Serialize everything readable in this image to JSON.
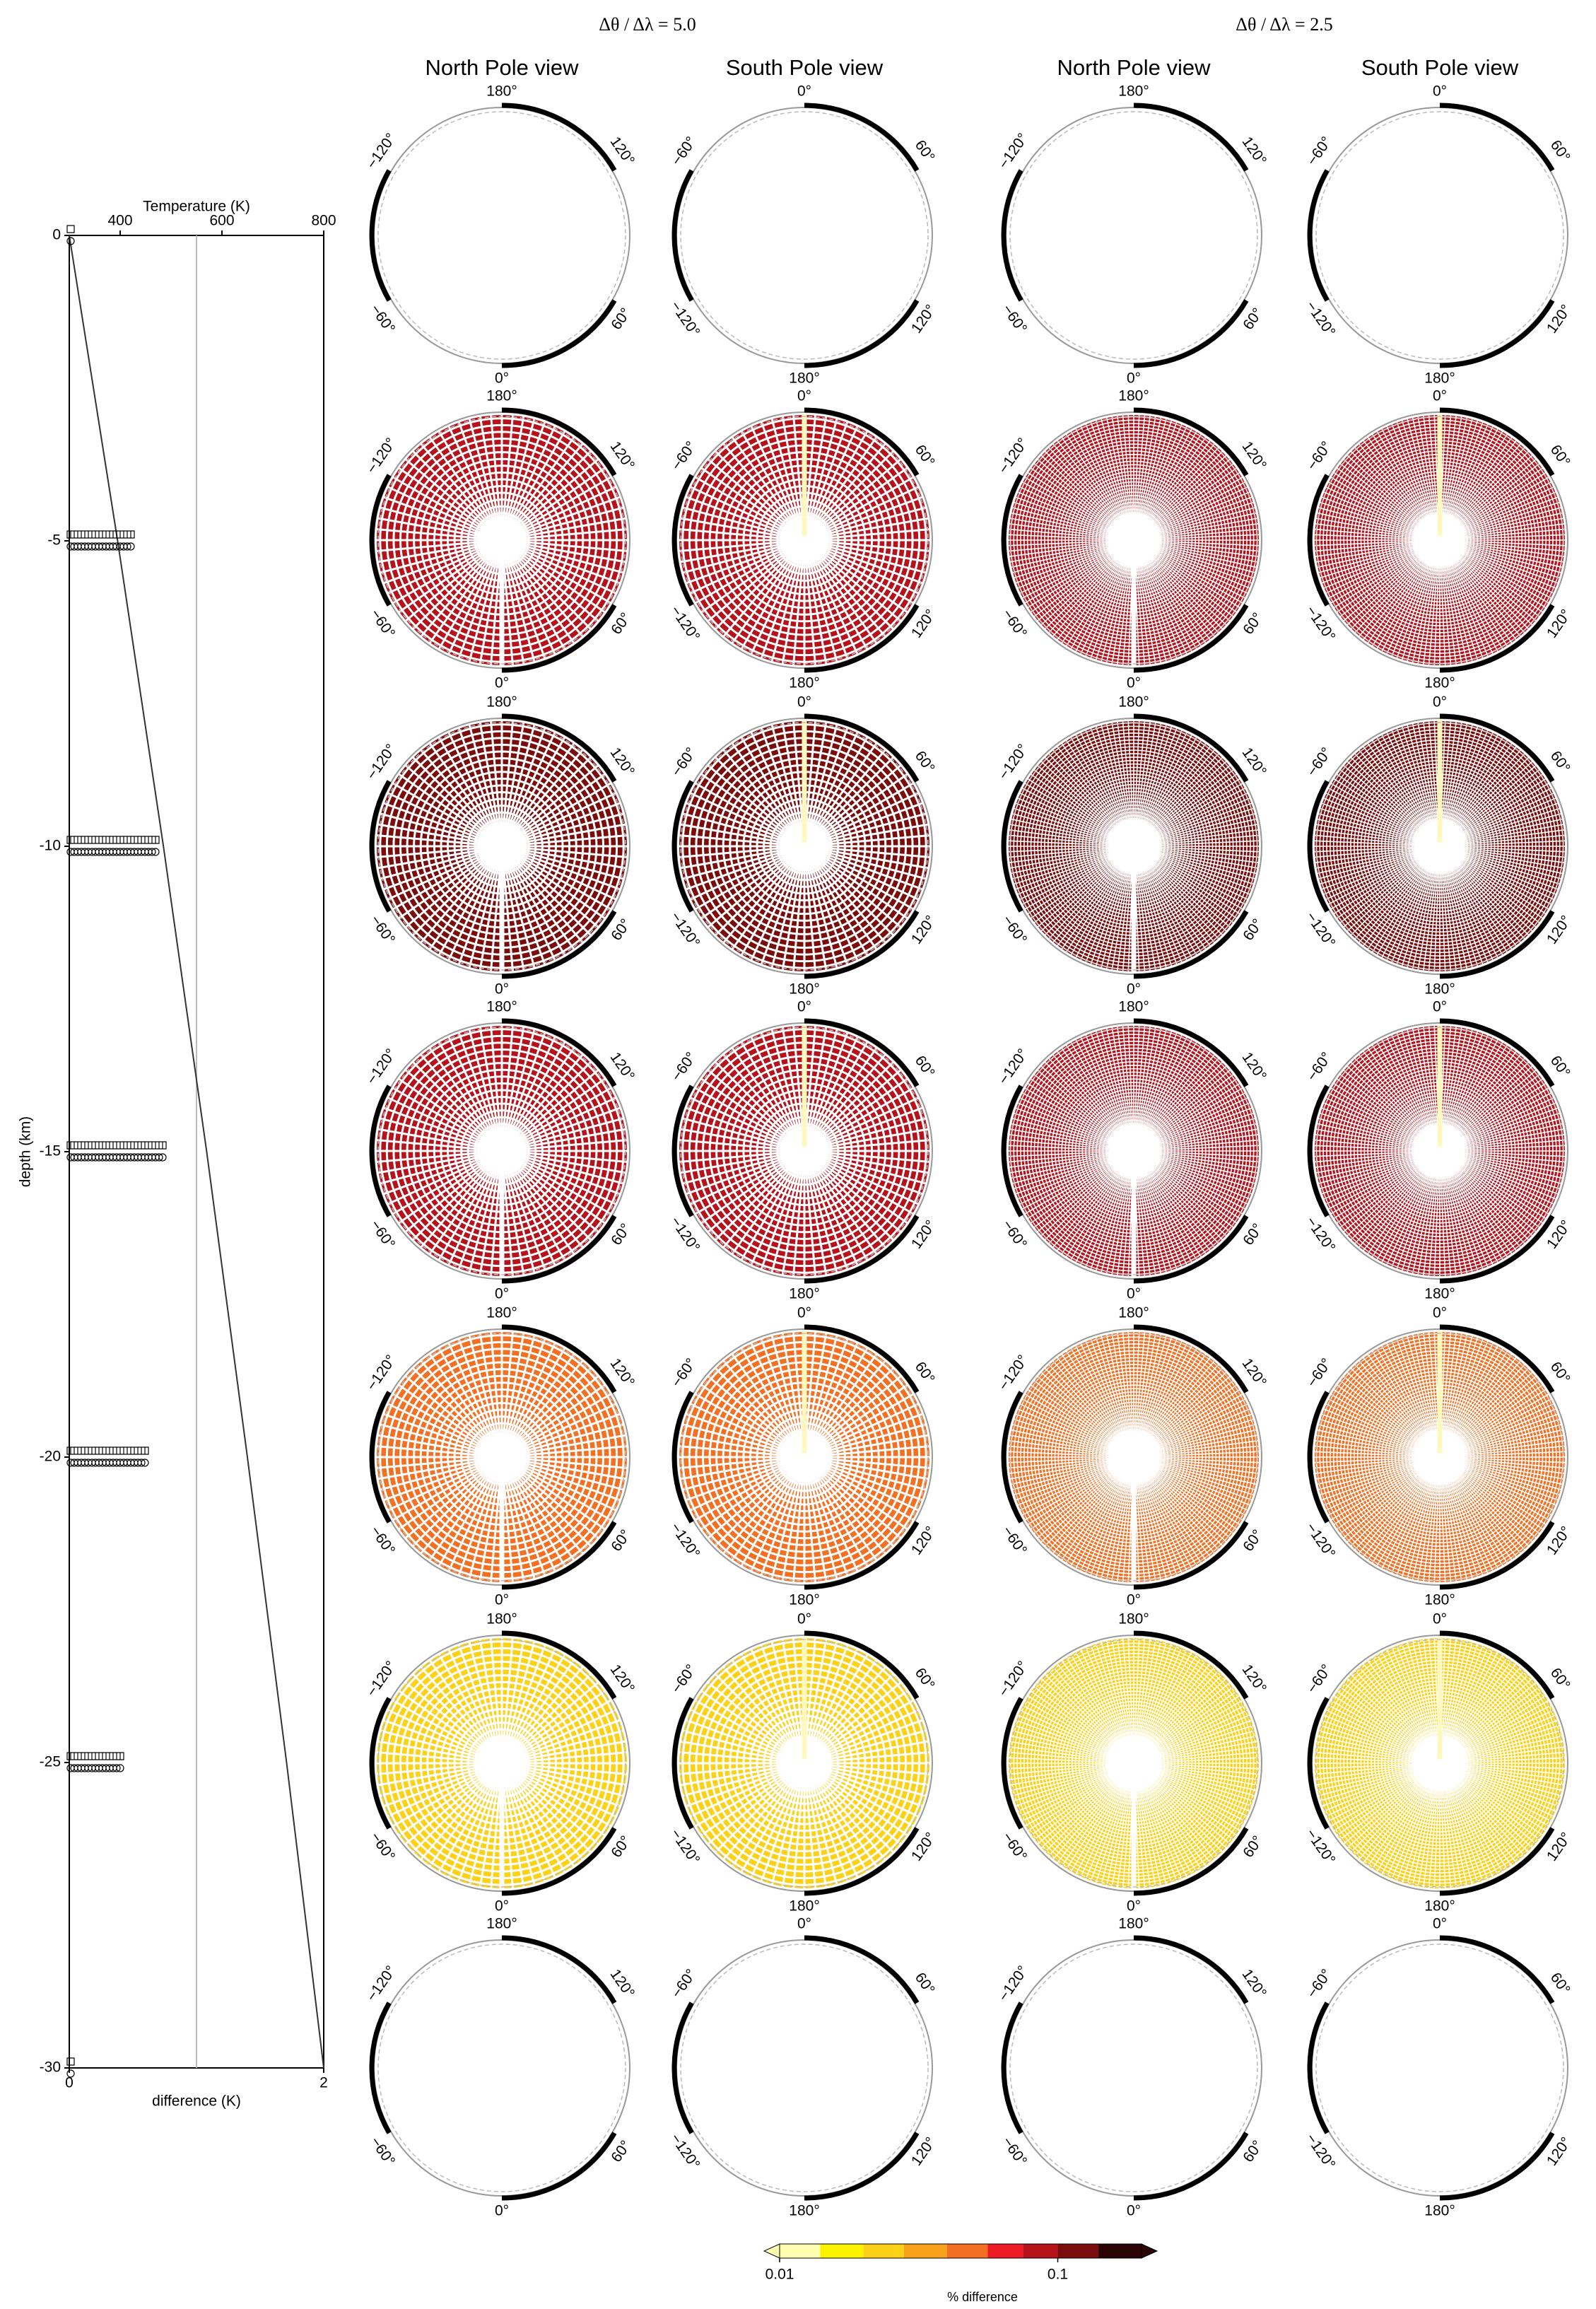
{
  "chart_data": [
    {
      "type": "profile",
      "xlabel": "Temperature (K)",
      "xlim": [
        300,
        800
      ],
      "xticks": [
        400,
        600,
        800
      ],
      "x2label": "difference (K)",
      "x2lim": [
        0,
        2
      ],
      "x2ticks": [
        0,
        2
      ],
      "x2gridlines": [
        1
      ],
      "ylabel": "depth (km)",
      "ylim": [
        -30,
        0
      ],
      "yticks": [
        0,
        -5,
        -10,
        -15,
        -20,
        -25,
        -30
      ],
      "series": [
        {
          "x": [
            300,
            395,
            485,
            570,
            650,
            727,
            800
          ],
          "values": [
            0,
            -5,
            -10,
            -15,
            -20,
            -25,
            -30
          ],
          "color": "#333333"
        }
      ],
      "difference": {
        "depths": [
          0,
          -5,
          -10,
          -15,
          -20,
          -25,
          -30
        ],
        "values": [
          0.02,
          0.5,
          0.7,
          0.75,
          0.6,
          0.4,
          0.02
        ]
      }
    },
    {
      "type": "polar-panels",
      "groups": [
        {
          "title": "Δθ / Δλ = 5.0"
        },
        {
          "title": "Δθ / Δλ = 2.5"
        }
      ],
      "views": [
        {
          "name": "North Pole view",
          "labels": [
            "180°",
            "120°",
            "60°",
            "0°",
            "−60°",
            "−120°"
          ]
        },
        {
          "name": "South Pole view",
          "labels": [
            "0°",
            "60°",
            "120°",
            "180°",
            "−120°",
            "−60°"
          ]
        }
      ],
      "values": [
        [
          null,
          null,
          null,
          null
        ],
        [
          0.08,
          0.08,
          0.08,
          0.08
        ],
        [
          0.12,
          0.12,
          0.12,
          0.12
        ],
        [
          0.085,
          0.085,
          0.085,
          0.085
        ],
        [
          0.05,
          0.05,
          0.05,
          0.05
        ],
        [
          0.025,
          0.025,
          0.025,
          0.025
        ],
        [
          null,
          null,
          null,
          null
        ]
      ]
    },
    {
      "type": "colorbar",
      "label": "% difference",
      "log": true,
      "levels": [
        0.01,
        0.014,
        0.02,
        0.028,
        0.04,
        0.056,
        0.075,
        0.1,
        0.14,
        0.2
      ],
      "colors": [
        "#ffffb0",
        "#fff200",
        "#fcd116",
        "#f9a11b",
        "#f36f21",
        "#ed1c24",
        "#b5121b",
        "#7a0c0c",
        "#2a0404"
      ],
      "ticks": [
        0.01,
        0.1
      ]
    }
  ]
}
